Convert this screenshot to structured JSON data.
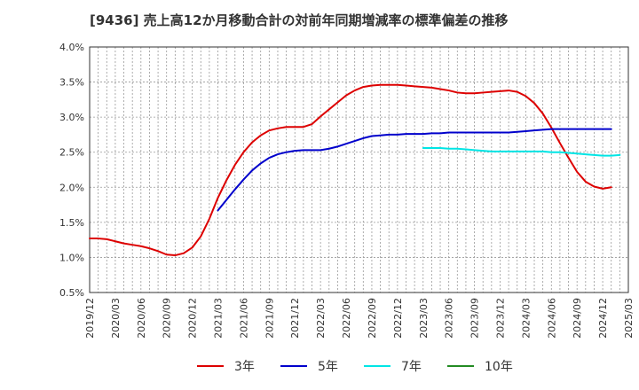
{
  "chart_data": {
    "type": "line",
    "title": "[9436]  売上高12か月移動合計の対前年同期増減率の標準偏差の推移",
    "xlabel": "",
    "ylabel": "",
    "ylim": [
      0.5,
      4.0
    ],
    "y_ticks": [
      "4.0%",
      "3.5%",
      "3.0%",
      "2.5%",
      "2.0%",
      "1.5%",
      "1.0%",
      "0.5%"
    ],
    "y_tick_values": [
      4.0,
      3.5,
      3.0,
      2.5,
      2.0,
      1.5,
      1.0,
      0.5
    ],
    "x_ticks": [
      "2019/12",
      "2020/03",
      "2020/06",
      "2020/09",
      "2020/12",
      "2021/03",
      "2021/06",
      "2021/09",
      "2021/12",
      "2022/03",
      "2022/06",
      "2022/09",
      "2022/12",
      "2023/03",
      "2023/06",
      "2023/09",
      "2023/12",
      "2024/03",
      "2024/06",
      "2024/09",
      "2024/12",
      "2025/03"
    ],
    "x_range_months": [
      0,
      63
    ],
    "grid": true,
    "legend_position": "bottom",
    "series": [
      {
        "name": "3年",
        "color": "#dd0000",
        "start_month": 0,
        "values": [
          1.27,
          1.27,
          1.26,
          1.23,
          1.2,
          1.18,
          1.16,
          1.13,
          1.09,
          1.04,
          1.03,
          1.06,
          1.14,
          1.3,
          1.55,
          1.85,
          2.1,
          2.32,
          2.5,
          2.64,
          2.74,
          2.81,
          2.84,
          2.86,
          2.86,
          2.86,
          2.9,
          3.01,
          3.11,
          3.21,
          3.31,
          3.38,
          3.43,
          3.45,
          3.46,
          3.46,
          3.46,
          3.45,
          3.44,
          3.43,
          3.42,
          3.4,
          3.38,
          3.35,
          3.34,
          3.34,
          3.35,
          3.36,
          3.37,
          3.38,
          3.36,
          3.3,
          3.2,
          3.05,
          2.85,
          2.63,
          2.42,
          2.22,
          2.08,
          2.01,
          1.98,
          2.0
        ]
      },
      {
        "name": "5年",
        "color": "#0000cc",
        "start_month": 15,
        "values": [
          1.67,
          1.82,
          1.97,
          2.11,
          2.24,
          2.34,
          2.42,
          2.47,
          2.5,
          2.52,
          2.53,
          2.53,
          2.53,
          2.55,
          2.58,
          2.62,
          2.66,
          2.7,
          2.73,
          2.74,
          2.75,
          2.75,
          2.76,
          2.76,
          2.76,
          2.77,
          2.77,
          2.78,
          2.78,
          2.78,
          2.78,
          2.78,
          2.78,
          2.78,
          2.78,
          2.79,
          2.8,
          2.81,
          2.82,
          2.83,
          2.83,
          2.83,
          2.83,
          2.83,
          2.83,
          2.83,
          2.83
        ]
      },
      {
        "name": "7年",
        "color": "#00e5e5",
        "start_month": 39,
        "values": [
          2.56,
          2.56,
          2.56,
          2.55,
          2.55,
          2.54,
          2.53,
          2.52,
          2.51,
          2.51,
          2.51,
          2.51,
          2.51,
          2.51,
          2.51,
          2.5,
          2.5,
          2.49,
          2.48,
          2.47,
          2.46,
          2.45,
          2.45,
          2.46
        ]
      },
      {
        "name": "10年",
        "color": "#228b22",
        "start_month": null,
        "values": []
      }
    ]
  }
}
